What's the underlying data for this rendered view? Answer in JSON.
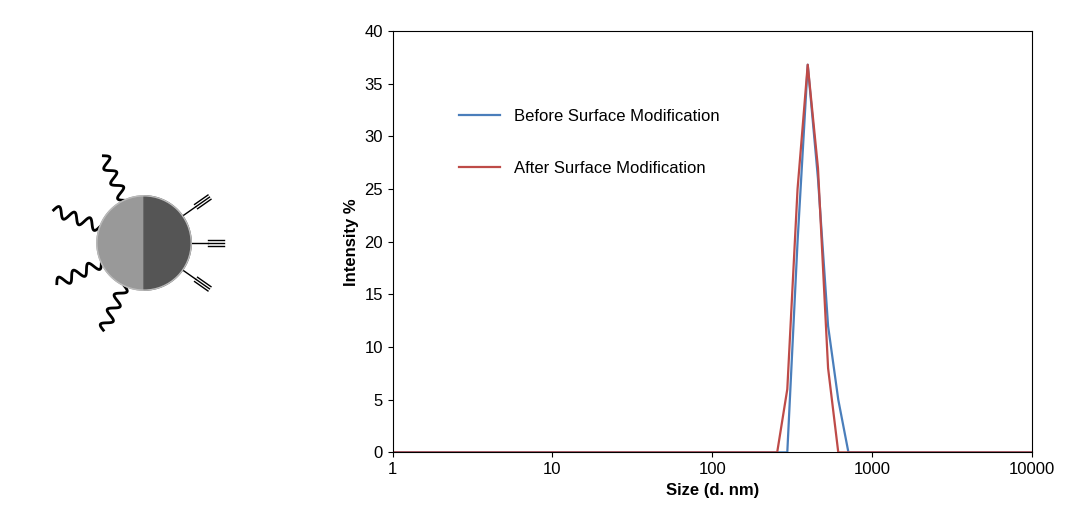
{
  "chart_data": {
    "type": "line",
    "x_label": "Size (d. nm)",
    "y_label": "Intensity %",
    "x": [
      1,
      255,
      295,
      342,
      396,
      459,
      531,
      615,
      712,
      10000
    ],
    "series": [
      {
        "name": "Before Surface Modification",
        "color": "#4a7ebb",
        "values": [
          0,
          0,
          0,
          20,
          36.8,
          26,
          12,
          5,
          0,
          0
        ]
      },
      {
        "name": "After Surface Modification",
        "color": "#be4b48",
        "values": [
          0,
          0,
          6,
          25,
          36.8,
          27,
          8,
          0,
          0,
          0
        ]
      }
    ],
    "log": "x",
    "xlim": [
      1,
      10000
    ],
    "xticks": [
      1,
      10,
      100,
      1000,
      10000
    ],
    "ylim": [
      0,
      40
    ],
    "yticks": [
      0,
      5,
      10,
      15,
      20,
      25,
      30,
      35,
      40
    ],
    "grid": false,
    "legend": "upper left"
  }
}
